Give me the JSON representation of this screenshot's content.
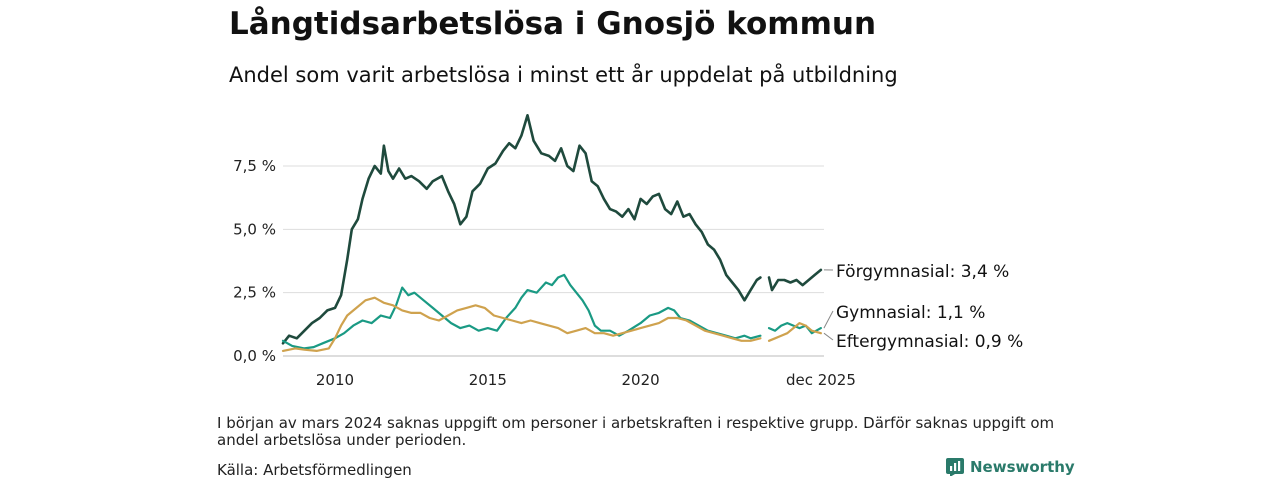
{
  "title": "Långtidsarbetslösa i Gnosjö kommun",
  "subtitle": "Andel som varit arbetslösa i minst ett år uppdelat på utbildning",
  "footnote": "I början av mars 2024 saknas uppgift om personer i arbetskraften i respektive grupp. Därför saknas uppgift om andel arbetslösa under perioden.",
  "source": "Källa: Arbetsförmedlingen",
  "brand": "Newsworthy",
  "colors": {
    "forgymnasial": "#1f4a3d",
    "gymnasial": "#1a9a84",
    "eftergymnasial": "#cfa24e",
    "grid": "#dddddd",
    "brand": "#2a7a6a"
  },
  "chart_data": {
    "type": "line",
    "title": "Långtidsarbetslösa i Gnosjö kommun",
    "xlabel": "",
    "ylabel": "",
    "xlim": [
      2008.3,
      2026.0
    ],
    "ylim": [
      0,
      9.5
    ],
    "y_ticks": [
      0,
      2.5,
      5.0,
      7.5
    ],
    "y_tick_labels": [
      "0,0 %",
      "2,5 %",
      "5,0 %",
      "7,5 %"
    ],
    "x_ticks": [
      2010,
      2015,
      2020,
      2025.9
    ],
    "x_tick_labels": [
      "2010",
      "2015",
      "2020",
      "dec 2025"
    ],
    "gap": [
      2023.92,
      2024.2
    ],
    "series": [
      {
        "name": "Förgymnasial",
        "end_label": "Förgymnasial: 3,4 %",
        "color": "#1f4a3d",
        "points": [
          [
            2008.3,
            0.5
          ],
          [
            2008.5,
            0.8
          ],
          [
            2008.75,
            0.7
          ],
          [
            2009.0,
            1.0
          ],
          [
            2009.25,
            1.3
          ],
          [
            2009.5,
            1.5
          ],
          [
            2009.75,
            1.8
          ],
          [
            2010.0,
            1.9
          ],
          [
            2010.2,
            2.4
          ],
          [
            2010.4,
            3.8
          ],
          [
            2010.55,
            5.0
          ],
          [
            2010.75,
            5.4
          ],
          [
            2010.9,
            6.2
          ],
          [
            2011.1,
            7.0
          ],
          [
            2011.3,
            7.5
          ],
          [
            2011.5,
            7.2
          ],
          [
            2011.6,
            8.3
          ],
          [
            2011.75,
            7.3
          ],
          [
            2011.9,
            7.0
          ],
          [
            2012.1,
            7.4
          ],
          [
            2012.3,
            7.0
          ],
          [
            2012.5,
            7.1
          ],
          [
            2012.75,
            6.9
          ],
          [
            2013.0,
            6.6
          ],
          [
            2013.2,
            6.9
          ],
          [
            2013.5,
            7.1
          ],
          [
            2013.7,
            6.5
          ],
          [
            2013.9,
            6.0
          ],
          [
            2014.1,
            5.2
          ],
          [
            2014.3,
            5.5
          ],
          [
            2014.5,
            6.5
          ],
          [
            2014.75,
            6.8
          ],
          [
            2015.0,
            7.4
          ],
          [
            2015.25,
            7.6
          ],
          [
            2015.5,
            8.1
          ],
          [
            2015.7,
            8.4
          ],
          [
            2015.9,
            8.2
          ],
          [
            2016.1,
            8.7
          ],
          [
            2016.3,
            9.5
          ],
          [
            2016.5,
            8.5
          ],
          [
            2016.75,
            8.0
          ],
          [
            2017.0,
            7.9
          ],
          [
            2017.2,
            7.7
          ],
          [
            2017.4,
            8.2
          ],
          [
            2017.6,
            7.5
          ],
          [
            2017.8,
            7.3
          ],
          [
            2018.0,
            8.3
          ],
          [
            2018.2,
            8.0
          ],
          [
            2018.4,
            6.9
          ],
          [
            2018.6,
            6.7
          ],
          [
            2018.8,
            6.2
          ],
          [
            2019.0,
            5.8
          ],
          [
            2019.2,
            5.7
          ],
          [
            2019.4,
            5.5
          ],
          [
            2019.6,
            5.8
          ],
          [
            2019.8,
            5.4
          ],
          [
            2020.0,
            6.2
          ],
          [
            2020.2,
            6.0
          ],
          [
            2020.4,
            6.3
          ],
          [
            2020.6,
            6.4
          ],
          [
            2020.8,
            5.8
          ],
          [
            2021.0,
            5.6
          ],
          [
            2021.2,
            6.1
          ],
          [
            2021.4,
            5.5
          ],
          [
            2021.6,
            5.6
          ],
          [
            2021.8,
            5.2
          ],
          [
            2022.0,
            4.9
          ],
          [
            2022.2,
            4.4
          ],
          [
            2022.4,
            4.2
          ],
          [
            2022.6,
            3.8
          ],
          [
            2022.8,
            3.2
          ],
          [
            2023.0,
            2.9
          ],
          [
            2023.2,
            2.6
          ],
          [
            2023.4,
            2.2
          ],
          [
            2023.6,
            2.6
          ],
          [
            2023.8,
            3.0
          ],
          [
            2023.92,
            3.1
          ],
          [
            2024.2,
            3.1
          ],
          [
            2024.3,
            2.6
          ],
          [
            2024.5,
            3.0
          ],
          [
            2024.7,
            3.0
          ],
          [
            2024.9,
            2.9
          ],
          [
            2025.1,
            3.0
          ],
          [
            2025.3,
            2.8
          ],
          [
            2025.5,
            3.0
          ],
          [
            2025.7,
            3.2
          ],
          [
            2025.9,
            3.4
          ]
        ]
      },
      {
        "name": "Gymnasial",
        "end_label": "Gymnasial: 1,1 %",
        "color": "#1a9a84",
        "points": [
          [
            2008.3,
            0.6
          ],
          [
            2008.6,
            0.4
          ],
          [
            2009.0,
            0.3
          ],
          [
            2009.3,
            0.35
          ],
          [
            2009.6,
            0.5
          ],
          [
            2010.0,
            0.7
          ],
          [
            2010.3,
            0.9
          ],
          [
            2010.6,
            1.2
          ],
          [
            2010.9,
            1.4
          ],
          [
            2011.2,
            1.3
          ],
          [
            2011.5,
            1.6
          ],
          [
            2011.8,
            1.5
          ],
          [
            2012.0,
            2.0
          ],
          [
            2012.2,
            2.7
          ],
          [
            2012.4,
            2.4
          ],
          [
            2012.6,
            2.5
          ],
          [
            2012.9,
            2.2
          ],
          [
            2013.2,
            1.9
          ],
          [
            2013.5,
            1.6
          ],
          [
            2013.8,
            1.3
          ],
          [
            2014.1,
            1.1
          ],
          [
            2014.4,
            1.2
          ],
          [
            2014.7,
            1.0
          ],
          [
            2015.0,
            1.1
          ],
          [
            2015.3,
            1.0
          ],
          [
            2015.6,
            1.5
          ],
          [
            2015.9,
            1.9
          ],
          [
            2016.1,
            2.3
          ],
          [
            2016.3,
            2.6
          ],
          [
            2016.6,
            2.5
          ],
          [
            2016.9,
            2.9
          ],
          [
            2017.1,
            2.8
          ],
          [
            2017.3,
            3.1
          ],
          [
            2017.5,
            3.2
          ],
          [
            2017.7,
            2.8
          ],
          [
            2017.9,
            2.5
          ],
          [
            2018.1,
            2.2
          ],
          [
            2018.3,
            1.8
          ],
          [
            2018.5,
            1.2
          ],
          [
            2018.7,
            1.0
          ],
          [
            2019.0,
            1.0
          ],
          [
            2019.3,
            0.8
          ],
          [
            2019.6,
            1.0
          ],
          [
            2020.0,
            1.3
          ],
          [
            2020.3,
            1.6
          ],
          [
            2020.6,
            1.7
          ],
          [
            2020.9,
            1.9
          ],
          [
            2021.1,
            1.8
          ],
          [
            2021.3,
            1.5
          ],
          [
            2021.6,
            1.4
          ],
          [
            2021.9,
            1.2
          ],
          [
            2022.2,
            1.0
          ],
          [
            2022.5,
            0.9
          ],
          [
            2022.8,
            0.8
          ],
          [
            2023.1,
            0.7
          ],
          [
            2023.4,
            0.8
          ],
          [
            2023.6,
            0.7
          ],
          [
            2023.92,
            0.8
          ],
          [
            2024.2,
            1.1
          ],
          [
            2024.4,
            1.0
          ],
          [
            2024.6,
            1.2
          ],
          [
            2024.8,
            1.3
          ],
          [
            2025.0,
            1.2
          ],
          [
            2025.2,
            1.1
          ],
          [
            2025.4,
            1.2
          ],
          [
            2025.6,
            0.9
          ],
          [
            2025.9,
            1.1
          ]
        ]
      },
      {
        "name": "Eftergymnasial",
        "end_label": "Eftergymnasial: 0,9 %",
        "color": "#cfa24e",
        "points": [
          [
            2008.3,
            0.2
          ],
          [
            2008.7,
            0.3
          ],
          [
            2009.0,
            0.25
          ],
          [
            2009.4,
            0.2
          ],
          [
            2009.8,
            0.3
          ],
          [
            2010.0,
            0.7
          ],
          [
            2010.2,
            1.2
          ],
          [
            2010.4,
            1.6
          ],
          [
            2010.7,
            1.9
          ],
          [
            2011.0,
            2.2
          ],
          [
            2011.3,
            2.3
          ],
          [
            2011.6,
            2.1
          ],
          [
            2011.9,
            2.0
          ],
          [
            2012.2,
            1.8
          ],
          [
            2012.5,
            1.7
          ],
          [
            2012.8,
            1.7
          ],
          [
            2013.1,
            1.5
          ],
          [
            2013.4,
            1.4
          ],
          [
            2013.7,
            1.6
          ],
          [
            2014.0,
            1.8
          ],
          [
            2014.3,
            1.9
          ],
          [
            2014.6,
            2.0
          ],
          [
            2014.9,
            1.9
          ],
          [
            2015.2,
            1.6
          ],
          [
            2015.5,
            1.5
          ],
          [
            2015.8,
            1.4
          ],
          [
            2016.1,
            1.3
          ],
          [
            2016.4,
            1.4
          ],
          [
            2016.7,
            1.3
          ],
          [
            2017.0,
            1.2
          ],
          [
            2017.3,
            1.1
          ],
          [
            2017.6,
            0.9
          ],
          [
            2017.9,
            1.0
          ],
          [
            2018.2,
            1.1
          ],
          [
            2018.5,
            0.9
          ],
          [
            2018.8,
            0.9
          ],
          [
            2019.1,
            0.8
          ],
          [
            2019.4,
            0.9
          ],
          [
            2019.7,
            1.0
          ],
          [
            2020.0,
            1.1
          ],
          [
            2020.3,
            1.2
          ],
          [
            2020.6,
            1.3
          ],
          [
            2020.9,
            1.5
          ],
          [
            2021.2,
            1.5
          ],
          [
            2021.5,
            1.4
          ],
          [
            2021.8,
            1.2
          ],
          [
            2022.1,
            1.0
          ],
          [
            2022.4,
            0.9
          ],
          [
            2022.7,
            0.8
          ],
          [
            2023.0,
            0.7
          ],
          [
            2023.3,
            0.6
          ],
          [
            2023.6,
            0.6
          ],
          [
            2023.92,
            0.7
          ],
          [
            2024.2,
            0.6
          ],
          [
            2024.4,
            0.7
          ],
          [
            2024.6,
            0.8
          ],
          [
            2024.8,
            0.9
          ],
          [
            2025.0,
            1.1
          ],
          [
            2025.2,
            1.3
          ],
          [
            2025.4,
            1.2
          ],
          [
            2025.6,
            1.0
          ],
          [
            2025.9,
            0.9
          ]
        ]
      }
    ]
  }
}
